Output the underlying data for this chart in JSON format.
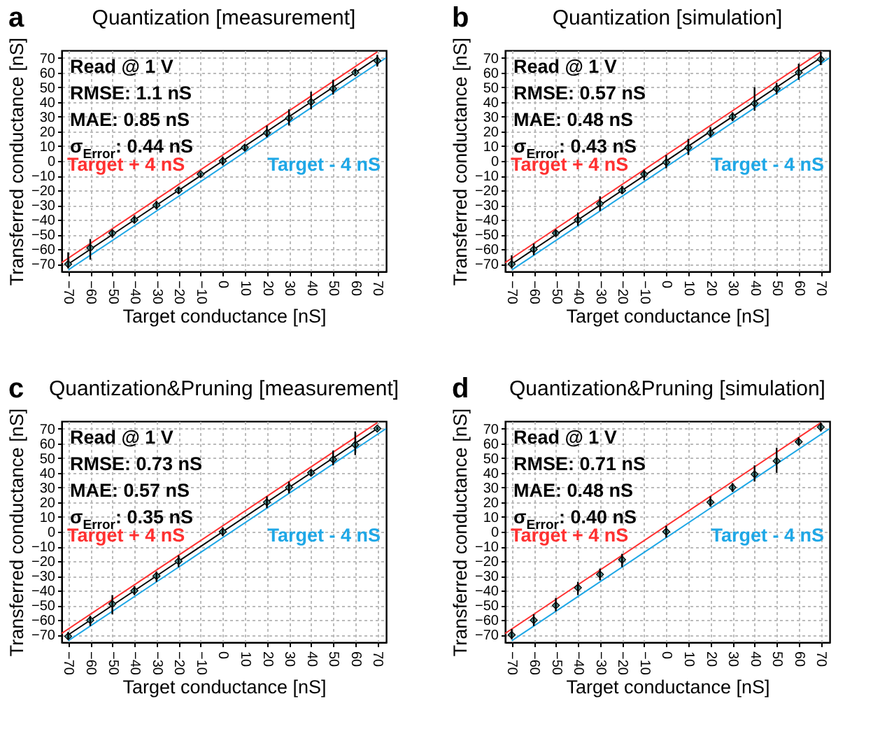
{
  "chart_data": [
    {
      "type": "scatter",
      "title": "Quantization [measurement]",
      "xlabel": "Target conductance [nS]",
      "ylabel": "Transferred conductance [nS]",
      "annotations": [
        "a",
        "Read @ 1 V",
        "RMSE: 1.1 nS",
        "MAE: 0.85 nS",
        "σ$_{Error}$: 0.44 nS"
      ],
      "xlim": [
        -73,
        74
      ],
      "ylim": [
        -75,
        75
      ],
      "xticks": [
        -70,
        -60,
        -50,
        -40,
        -30,
        -20,
        -10,
        0,
        10,
        20,
        30,
        40,
        50,
        60,
        70
      ],
      "yticks": [
        -70,
        -60,
        -50,
        -40,
        -30,
        -20,
        -10,
        0,
        10,
        20,
        30,
        40,
        50,
        60,
        70
      ],
      "grid": true,
      "series": [
        {
          "type": "line",
          "color": "#000000",
          "x": [
            -70,
            70
          ],
          "values": [
            -70,
            70
          ]
        },
        {
          "type": "line",
          "name": "Target + 4 nS",
          "color": "#ff3030",
          "x": [
            -73,
            70
          ],
          "values": [
            -69,
            74
          ]
        },
        {
          "type": "line",
          "name": "Target - 4 nS",
          "color": "#1ea7e6",
          "x": [
            -70,
            74
          ],
          "values": [
            -74,
            70
          ]
        },
        {
          "color": "#4e8c8c",
          "marker": "diamond",
          "x": [
            -70,
            -60,
            -50,
            -40,
            -30,
            -20,
            -10,
            0,
            10,
            20,
            30,
            40,
            50,
            60,
            70
          ],
          "values": [
            -70,
            -59,
            -49,
            -40,
            -30,
            -20,
            -9,
            0,
            9,
            19,
            29,
            40,
            49,
            60,
            68
          ],
          "errors": [
            [
              -73,
              -62
            ],
            [
              -67,
              -53
            ],
            [
              -52,
              -47
            ],
            [
              -42,
              -37
            ],
            [
              -33,
              -27
            ],
            [
              -22,
              -18
            ],
            [
              -11,
              -8
            ],
            [
              -3,
              3
            ],
            [
              7,
              11
            ],
            [
              16,
              24
            ],
            [
              24,
              35
            ],
            [
              35,
              47
            ],
            [
              45,
              55
            ],
            [
              59,
              62
            ],
            [
              64,
              72
            ]
          ]
        }
      ]
    },
    {
      "type": "scatter",
      "title": "Quantization [simulation]",
      "xlabel": "Target conductance [nS]",
      "ylabel": "Transferred conductance [nS]",
      "annotations": [
        "b",
        "Read @ 1 V",
        "RMSE: 0.57 nS",
        "MAE: 0.48 nS",
        "σ$_{Error}$: 0.43 nS"
      ],
      "xlim": [
        -73,
        74
      ],
      "ylim": [
        -75,
        75
      ],
      "xticks": [
        -70,
        -60,
        -50,
        -40,
        -30,
        -20,
        -10,
        0,
        10,
        20,
        30,
        40,
        50,
        60,
        70
      ],
      "yticks": [
        -70,
        -60,
        -50,
        -40,
        -30,
        -20,
        -10,
        0,
        10,
        20,
        30,
        40,
        50,
        60,
        70
      ],
      "grid": true,
      "series": [
        {
          "type": "line",
          "color": "#000000",
          "x": [
            -70,
            70
          ],
          "values": [
            -70,
            70
          ]
        },
        {
          "type": "line",
          "name": "Target + 4 nS",
          "color": "#ff3030",
          "x": [
            -73,
            70
          ],
          "values": [
            -69,
            74
          ]
        },
        {
          "type": "line",
          "name": "Target - 4 nS",
          "color": "#1ea7e6",
          "x": [
            -70,
            74
          ],
          "values": [
            -74,
            70
          ]
        },
        {
          "color": "#4e8c8c",
          "marker": "diamond",
          "x": [
            -70,
            -60,
            -50,
            -40,
            -30,
            -20,
            -10,
            0,
            10,
            20,
            30,
            40,
            50,
            60,
            70
          ],
          "values": [
            -70,
            -60,
            -49,
            -40,
            -29,
            -20,
            -9,
            -1,
            9,
            19,
            30,
            39,
            49,
            60,
            69
          ],
          "errors": [
            [
              -73,
              -64
            ],
            [
              -64,
              -56
            ],
            [
              -51,
              -47
            ],
            [
              -44,
              -35
            ],
            [
              -34,
              -24
            ],
            [
              -22,
              -17
            ],
            [
              -13,
              -6
            ],
            [
              -5,
              4
            ],
            [
              4,
              15
            ],
            [
              16,
              23
            ],
            [
              27,
              33
            ],
            [
              34,
              50
            ],
            [
              45,
              53
            ],
            [
              55,
              66
            ],
            [
              65,
              74
            ]
          ]
        }
      ]
    },
    {
      "type": "scatter",
      "title": "Quantization&Pruning [measurement]",
      "xlabel": "Target conductance [nS]",
      "ylabel": "Transferred conductance [nS]",
      "annotations": [
        "c",
        "Read @ 1 V",
        "RMSE: 0.73 nS",
        "MAE: 0.57 nS",
        "σ$_{Error}$: 0.35 nS"
      ],
      "xlim": [
        -73,
        74
      ],
      "ylim": [
        -75,
        75
      ],
      "xticks": [
        -70,
        -60,
        -50,
        -40,
        -30,
        -20,
        -10,
        0,
        10,
        20,
        30,
        40,
        50,
        60,
        70
      ],
      "yticks": [
        -70,
        -60,
        -50,
        -40,
        -30,
        -20,
        -10,
        0,
        10,
        20,
        30,
        40,
        50,
        60,
        70
      ],
      "grid": true,
      "series": [
        {
          "type": "line",
          "color": "#000000",
          "x": [
            -70,
            70
          ],
          "values": [
            -70,
            70
          ]
        },
        {
          "type": "line",
          "name": "Target + 4 nS",
          "color": "#ff3030",
          "x": [
            -73,
            70
          ],
          "values": [
            -69,
            74
          ]
        },
        {
          "type": "line",
          "name": "Target - 4 nS",
          "color": "#1ea7e6",
          "x": [
            -70,
            74
          ],
          "values": [
            -74,
            70
          ]
        },
        {
          "color": "#4e8c8c",
          "marker": "diamond",
          "x": [
            -70,
            -60,
            -50,
            -40,
            -30,
            -20,
            0,
            20,
            30,
            40,
            50,
            60,
            70
          ],
          "values": [
            -71,
            -60,
            -49,
            -40,
            -30,
            -20,
            0,
            20,
            30,
            40,
            49,
            59,
            70
          ],
          "errors": [
            [
              -73,
              -68
            ],
            [
              -64,
              -57
            ],
            [
              -56,
              -43
            ],
            [
              -43,
              -37
            ],
            [
              -34,
              -27
            ],
            [
              -24,
              -16
            ],
            [
              -3,
              3
            ],
            [
              16,
              24
            ],
            [
              26,
              34
            ],
            [
              38,
              42
            ],
            [
              45,
              55
            ],
            [
              52,
              68
            ],
            [
              69,
              71
            ]
          ]
        }
      ]
    },
    {
      "type": "scatter",
      "title": "Quantization&Pruning [simulation]",
      "xlabel": "Target conductance [nS]",
      "ylabel": "Transferred conductance [nS]",
      "annotations": [
        "d",
        "Read @ 1 V",
        "RMSE: 0.71 nS",
        "MAE: 0.48 nS",
        "σ$_{Error}$: 0.40 nS"
      ],
      "xlim": [
        -73,
        74
      ],
      "ylim": [
        -75,
        75
      ],
      "xticks": [
        -70,
        -60,
        -50,
        -40,
        -30,
        -20,
        -10,
        0,
        10,
        20,
        30,
        40,
        50,
        60,
        70
      ],
      "yticks": [
        -70,
        -60,
        -50,
        -40,
        -30,
        -20,
        -10,
        0,
        10,
        20,
        30,
        40,
        50,
        60,
        70
      ],
      "grid": true,
      "series": [
        {
          "type": "line",
          "name": "Target + 4 nS",
          "color": "#ff3030",
          "x": [
            -73,
            70
          ],
          "values": [
            -69,
            74
          ]
        },
        {
          "type": "line",
          "name": "Target - 4 nS",
          "color": "#1ea7e6",
          "x": [
            -70,
            74
          ],
          "values": [
            -74,
            70
          ]
        },
        {
          "color": "#4e8c8c",
          "marker": "diamond",
          "x": [
            -70,
            -60,
            -50,
            -40,
            -30,
            -20,
            0,
            20,
            30,
            40,
            50,
            60,
            70
          ],
          "values": [
            -70,
            -60,
            -50,
            -38,
            -29,
            -19,
            0,
            20,
            30,
            39,
            48,
            61,
            71
          ],
          "errors": [
            [
              -73,
              -66
            ],
            [
              -64,
              -56
            ],
            [
              -54,
              -45
            ],
            [
              -43,
              -34
            ],
            [
              -33,
              -25
            ],
            [
              -24,
              -15
            ],
            [
              -4,
              4
            ],
            [
              17,
              24
            ],
            [
              27,
              33
            ],
            [
              34,
              45
            ],
            [
              40,
              57
            ],
            [
              59,
              64
            ],
            [
              68,
              74
            ]
          ]
        }
      ]
    }
  ]
}
